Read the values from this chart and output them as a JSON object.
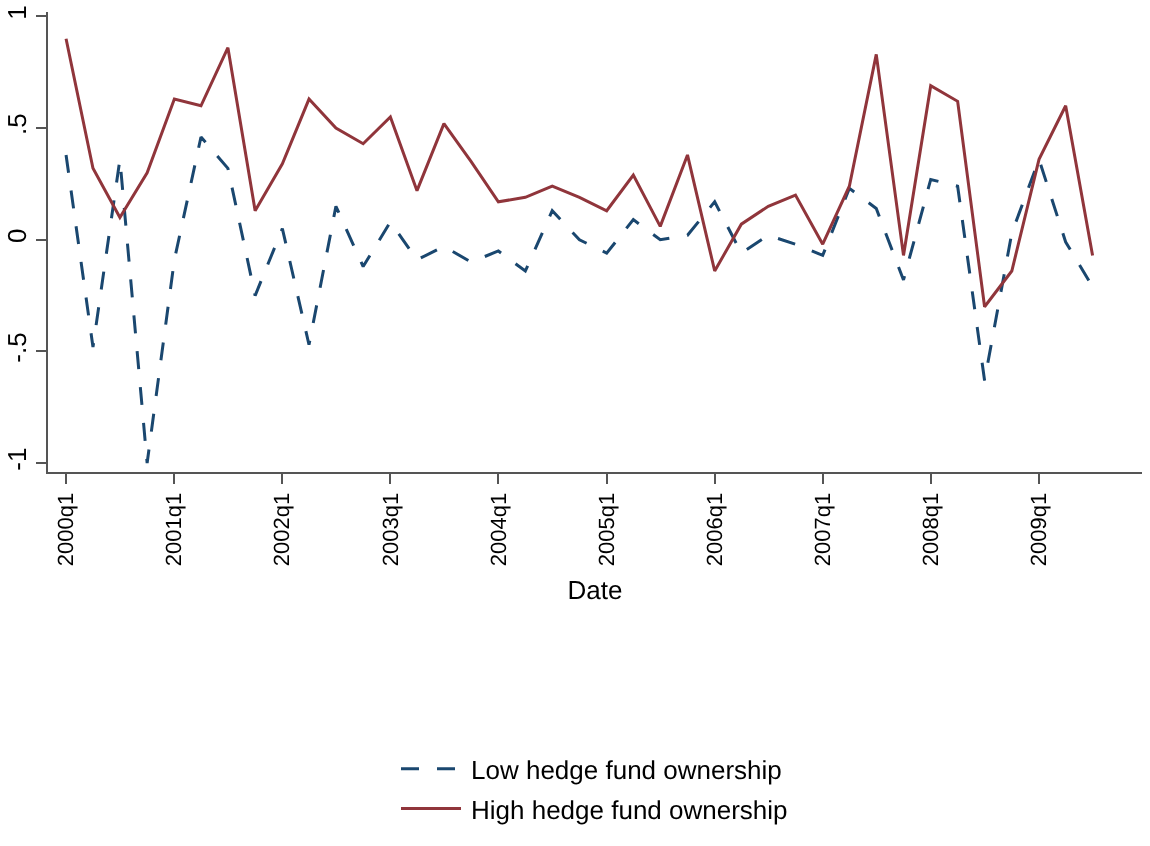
{
  "chart_data": {
    "type": "line",
    "xlabel": "Date",
    "x": [
      "2000-01",
      "2000-04",
      "2000-07",
      "2000-10",
      "2001-01",
      "2001-04",
      "2001-07",
      "2001-10",
      "2002-01",
      "2002-04",
      "2002-07",
      "2002-10",
      "2003-01",
      "2003-04",
      "2003-07",
      "2003-10",
      "2004-01",
      "2004-04",
      "2004-07",
      "2004-10",
      "2005-01",
      "2005-04",
      "2005-07",
      "2005-10",
      "2006-01",
      "2006-04",
      "2006-07",
      "2006-10",
      "2007-01",
      "2007-04",
      "2007-07",
      "2007-10",
      "2008-01",
      "2008-04",
      "2008-07",
      "2008-10",
      "2009-01",
      "2009-04",
      "2009-07"
    ],
    "series": [
      {
        "name": "Low hedge fund ownership",
        "color": "#1a476f",
        "line_style": "dashed",
        "values": [
          0.38,
          -0.48,
          0.36,
          -1.0,
          -0.09,
          0.46,
          0.32,
          -0.25,
          0.05,
          -0.47,
          0.15,
          -0.12,
          0.08,
          -0.09,
          -0.03,
          -0.1,
          -0.05,
          -0.14,
          0.13,
          0.0,
          -0.06,
          0.09,
          0.0,
          0.02,
          0.17,
          -0.06,
          0.02,
          -0.02,
          -0.07,
          0.23,
          0.14,
          -0.18,
          0.27,
          0.24,
          -0.63,
          0.03,
          0.36,
          -0.01,
          -0.21
        ]
      },
      {
        "name": "High hedge fund ownership",
        "color": "#90353b",
        "line_style": "solid",
        "values": [
          0.9,
          0.32,
          0.1,
          0.3,
          0.63,
          0.6,
          0.86,
          0.13,
          0.34,
          0.63,
          0.5,
          0.43,
          0.55,
          0.22,
          0.52,
          0.35,
          0.17,
          0.19,
          0.24,
          0.19,
          0.13,
          0.29,
          0.06,
          0.38,
          -0.14,
          0.07,
          0.15,
          0.2,
          -0.02,
          0.24,
          0.83,
          -0.07,
          0.69,
          0.62,
          -0.3,
          -0.14,
          0.36,
          0.6,
          -0.07
        ]
      }
    ],
    "xlim": [
      "1999-11",
      "2009-12-15"
    ],
    "xticks": [
      {
        "value": "2000-01",
        "label": "2000q1"
      },
      {
        "value": "2001-01",
        "label": "2001q1"
      },
      {
        "value": "2002-01",
        "label": "2002q1"
      },
      {
        "value": "2003-01",
        "label": "2003q1"
      },
      {
        "value": "2004-01",
        "label": "2004q1"
      },
      {
        "value": "2005-01",
        "label": "2005q1"
      },
      {
        "value": "2006-01",
        "label": "2006q1"
      },
      {
        "value": "2007-01",
        "label": "2007q1"
      },
      {
        "value": "2008-01",
        "label": "2008q1"
      },
      {
        "value": "2009-01",
        "label": "2009q1"
      }
    ],
    "ylim": [
      -1.04,
      1.02
    ],
    "yticks": [
      {
        "value": -1,
        "label": "-1"
      },
      {
        "value": -0.5,
        "label": "-.5"
      },
      {
        "value": 0,
        "label": "0"
      },
      {
        "value": 0.5,
        "label": ".5"
      },
      {
        "value": 1,
        "label": "1"
      }
    ],
    "legend": "bottom"
  }
}
